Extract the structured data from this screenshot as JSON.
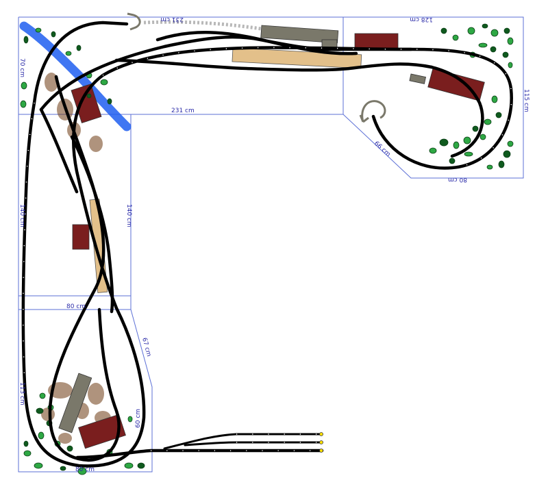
{
  "plan": {
    "colors": {
      "board_edge": "#5b6fd6",
      "dimension_text": "#2a2aa8",
      "track": "#000000",
      "river": "#1f5ef0",
      "tree_dark": "#0f5a1e",
      "tree_light": "#2ea844",
      "building_red": "#7a1e1e",
      "platform_tan": "#e3c08a",
      "shed_grey": "#7a786a",
      "rock_brown": "#6e3b12"
    },
    "dimensions": {
      "top_hidden": "231 cm",
      "top_right": "128 cm",
      "middle": "231 cm",
      "right_side": "115 cm",
      "diagonal": "66 cm",
      "bottom_right": "80 cm",
      "left_upper": "70 cm",
      "left_middle": "140 cm",
      "inner_middle": "140 cm",
      "cross": "80 cm",
      "diagonal_lower": "67 cm",
      "left_lower": "113 cm",
      "lower_end": "60 cm",
      "bottom": "80 cm"
    }
  }
}
